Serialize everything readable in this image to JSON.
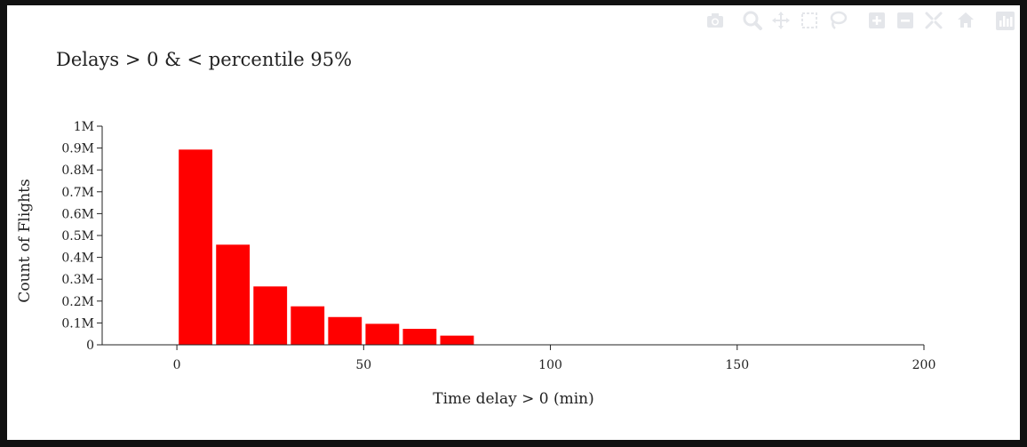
{
  "colors": {
    "bar": "#ff0000",
    "axis": "#222222",
    "modebar_icon": "#e4e6ea"
  },
  "modebar": {
    "icons": [
      "camera-icon",
      "zoom-icon",
      "pan-icon",
      "box-select-icon",
      "lasso-select-icon",
      "zoom-in-icon",
      "zoom-out-icon",
      "autoscale-icon",
      "reset-axes-icon",
      "plotly-logo-icon"
    ]
  },
  "chart_data": {
    "type": "bar",
    "title": "Delays > 0 & < percentile 95%",
    "xlabel": "Time delay > 0 (min)",
    "ylabel": "Count of Flights",
    "x_centers": [
      5,
      15,
      25,
      35,
      45,
      55,
      65,
      75
    ],
    "bin_width": 10,
    "values": [
      893000,
      458000,
      267000,
      176000,
      127000,
      96000,
      73000,
      42000
    ],
    "xlim": [
      -20,
      200
    ],
    "ylim": [
      0,
      1000000
    ],
    "x_ticks": [
      {
        "value": 0,
        "label": "0"
      },
      {
        "value": 50,
        "label": "50"
      },
      {
        "value": 100,
        "label": "100"
      },
      {
        "value": 150,
        "label": "150"
      },
      {
        "value": 200,
        "label": "200"
      }
    ],
    "y_ticks": [
      {
        "value": 0,
        "label": "0"
      },
      {
        "value": 100000,
        "label": "0.1M"
      },
      {
        "value": 200000,
        "label": "0.2M"
      },
      {
        "value": 300000,
        "label": "0.3M"
      },
      {
        "value": 400000,
        "label": "0.4M"
      },
      {
        "value": 500000,
        "label": "0.5M"
      },
      {
        "value": 600000,
        "label": "0.6M"
      },
      {
        "value": 700000,
        "label": "0.7M"
      },
      {
        "value": 800000,
        "label": "0.8M"
      },
      {
        "value": 900000,
        "label": "0.9M"
      },
      {
        "value": 1000000,
        "label": "1M"
      }
    ],
    "grid": false,
    "legend": "none"
  }
}
